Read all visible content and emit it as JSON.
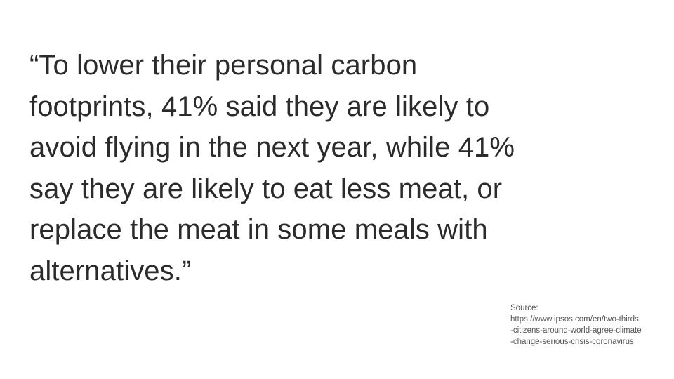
{
  "quote": {
    "lines": [
      "“To lower their personal carbon",
      "footprints, 41% said they are likely to",
      "avoid flying in the next year, while 41%",
      "say they are likely to eat less meat, or",
      "replace the meat in some meals with",
      "alternatives.”"
    ]
  },
  "source": {
    "label": "Source:",
    "url_lines": [
      "https://www.ipsos.com/en/two-thirds",
      "-citizens-around-world-agree-climate",
      "-change-serious-crisis-coronavirus"
    ]
  }
}
